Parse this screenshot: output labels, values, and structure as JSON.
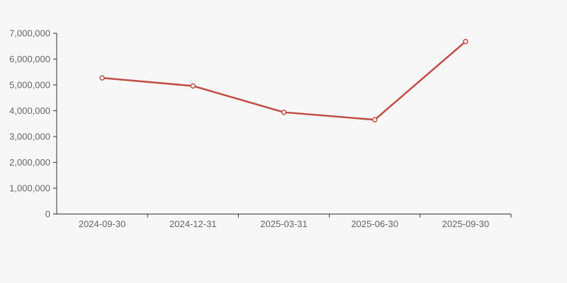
{
  "chart_data": {
    "type": "line",
    "categories": [
      "2024-09-30",
      "2024-12-31",
      "2025-03-31",
      "2025-06-30",
      "2025-09-30"
    ],
    "series": [
      {
        "name": "value",
        "values": [
          5270000,
          4960000,
          3940000,
          3650000,
          6680000
        ]
      }
    ],
    "title": "",
    "xlabel": "",
    "ylabel": "",
    "ylim": [
      0,
      7000000
    ],
    "y_tick_interval": 1000000,
    "y_tick_labels": [
      "0",
      "1,000,000",
      "2,000,000",
      "3,000,000",
      "4,000,000",
      "5,000,000",
      "6,000,000",
      "7,000,000"
    ],
    "grid": false,
    "legend": "none",
    "marker": "hollow-circle",
    "colors": {
      "line": "#c04d47",
      "marker_fill": "#ffffff",
      "axis": "#333333",
      "tick_label": "#666666",
      "background": "#f7f7f7"
    }
  }
}
